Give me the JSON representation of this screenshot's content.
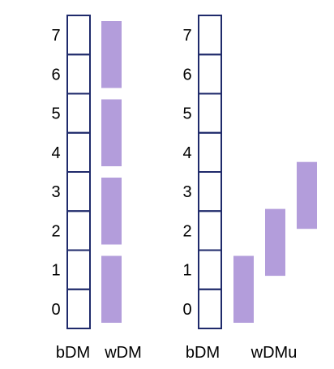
{
  "colors": {
    "cell_border": "#1f2a6b",
    "bar_fill": "#b39ddb",
    "text": "#000000"
  },
  "left": {
    "column_label": "bDM",
    "bar_label": "wDM",
    "row_labels": [
      "0",
      "1",
      "2",
      "3",
      "4",
      "5",
      "6",
      "7"
    ],
    "bars": [
      {
        "from": 0,
        "to": 2
      },
      {
        "from": 2,
        "to": 4
      },
      {
        "from": 4,
        "to": 6
      },
      {
        "from": 6,
        "to": 8
      }
    ]
  },
  "right": {
    "column_label": "bDM",
    "bar_label": "wDMu",
    "row_labels": [
      "0",
      "1",
      "2",
      "3",
      "4",
      "5",
      "6",
      "7"
    ],
    "bars": [
      {
        "from": 0,
        "to": 2
      },
      {
        "from": 1.2,
        "to": 3.2
      },
      {
        "from": 2.4,
        "to": 4.4
      }
    ]
  }
}
